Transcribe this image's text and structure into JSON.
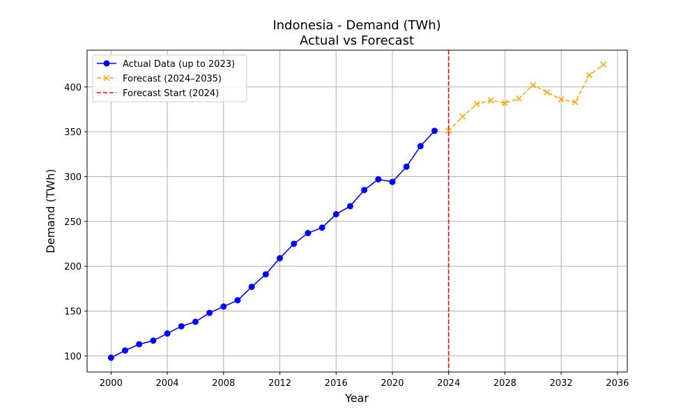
{
  "chart_data": {
    "type": "line",
    "title": "Indonesia - Demand (TWh)",
    "subtitle": "Actual vs Forecast",
    "xlabel": "Year",
    "ylabel": "Demand (TWh)",
    "xlim": [
      1998.3,
      2036.7
    ],
    "ylim": [
      82,
      441
    ],
    "x_ticks": [
      2000,
      2004,
      2008,
      2012,
      2016,
      2020,
      2024,
      2028,
      2032,
      2036
    ],
    "y_ticks": [
      100,
      150,
      200,
      250,
      300,
      350,
      400
    ],
    "grid": true,
    "legend_position": "top-left",
    "series": [
      {
        "name": "Actual Data (up to 2023)",
        "color": "#0000ff",
        "marker": "circle",
        "line_style": "solid",
        "x": [
          2000,
          2001,
          2002,
          2003,
          2004,
          2005,
          2006,
          2007,
          2008,
          2009,
          2010,
          2011,
          2012,
          2013,
          2014,
          2015,
          2016,
          2017,
          2018,
          2019,
          2020,
          2021,
          2022,
          2023
        ],
        "y": [
          98,
          106,
          113,
          117,
          125,
          133,
          138,
          148,
          155,
          162,
          177,
          191,
          209,
          225,
          237,
          243,
          258,
          267,
          285,
          297,
          294,
          311,
          334,
          351
        ]
      },
      {
        "name": "Forecast (2024–2035)",
        "color": "#ffa500",
        "marker": "x",
        "line_style": "dashed",
        "x": [
          2024,
          2025,
          2026,
          2027,
          2028,
          2029,
          2030,
          2031,
          2032,
          2033,
          2034,
          2035
        ],
        "y": [
          351,
          367,
          381,
          385,
          382,
          387,
          402,
          394,
          386,
          383,
          413,
          425
        ]
      }
    ],
    "vline": {
      "name": "Forecast Start (2024)",
      "x": 2024,
      "color": "#ff0000",
      "line_style": "dashed"
    }
  }
}
